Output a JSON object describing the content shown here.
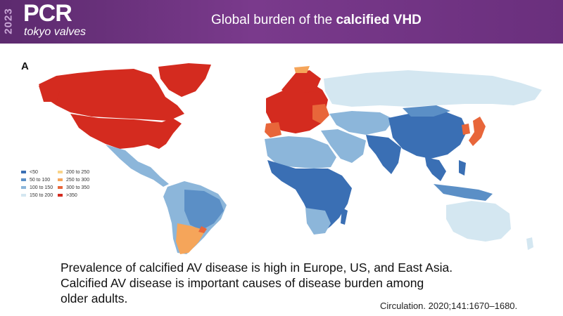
{
  "header": {
    "year": "2023",
    "logo": "PCR",
    "logo_sub": "tokyo valves",
    "title_prefix": "Global burden of the ",
    "title_bold": "calcified VHD",
    "background_color": "#6a2f7d"
  },
  "figure": {
    "panel_letter": "A",
    "legend": [
      {
        "label": "<50",
        "color": "#3a6fb4"
      },
      {
        "label": "50 to 100",
        "color": "#5b8fc6"
      },
      {
        "label": "100 to 150",
        "color": "#8cb6da"
      },
      {
        "label": "150 to 200",
        "color": "#d4e7f1"
      },
      {
        "label": "200 to 250",
        "color": "#f9d48a"
      },
      {
        "label": "250 to 300",
        "color": "#f5a55a"
      },
      {
        "label": "300 to 350",
        "color": "#e8663a"
      },
      {
        "label": ">350",
        "color": "#d42b1f"
      }
    ]
  },
  "caption": {
    "line1": "Prevalence of calcified AV disease is high in Europe, US, and East Asia.",
    "line2": "Calcified AV disease is important causes of disease burden among",
    "line3": "older adults."
  },
  "citation": "Circulation. 2020;141:1670–1680."
}
